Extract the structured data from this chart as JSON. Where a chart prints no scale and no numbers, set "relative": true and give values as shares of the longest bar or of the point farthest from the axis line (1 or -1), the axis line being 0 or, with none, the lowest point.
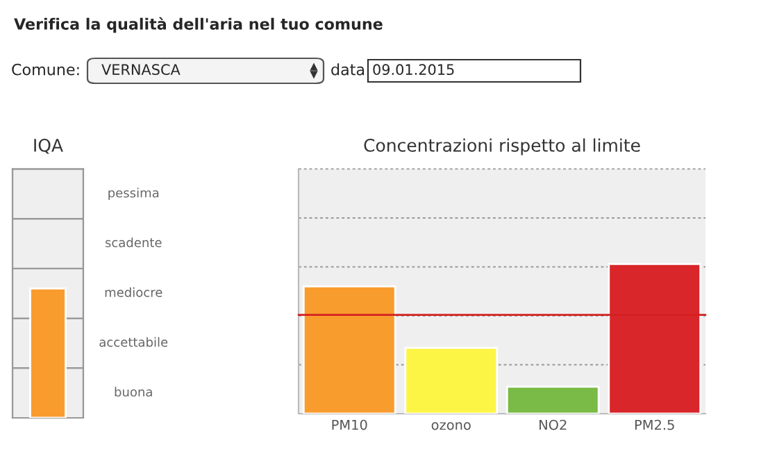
{
  "chart_data": [
    {
      "type": "other",
      "title": "Verifica la qualità dell'aria nel tuo comune",
      "annotations": [
        "Comune:",
        "VERNASCA",
        "data",
        "09.01.2015"
      ]
    },
    {
      "type": "bar",
      "title": "IQA",
      "categories": [
        null
      ],
      "values": [
        1
      ],
      "colors": [
        "#f99c2e"
      ],
      "relative": true,
      "bands": [
        {
          "axis": "y",
          "from": 0,
          "to": 0.385,
          "label": "buona",
          "color": "#efefef"
        },
        {
          "axis": "y",
          "from": 0.385,
          "to": 0.769,
          "label": "accettabile",
          "color": "#efefef"
        },
        {
          "axis": "y",
          "from": 0.769,
          "to": 1.154,
          "label": "mediocre",
          "color": "#efefef"
        },
        {
          "axis": "y",
          "from": 1.154,
          "to": 1.538,
          "label": "scadente",
          "color": "#efefef"
        },
        {
          "axis": "y",
          "from": 1.538,
          "to": 1.923,
          "label": "pessima",
          "color": "#efefef"
        }
      ]
    },
    {
      "type": "bar",
      "title": "Concentrazioni rispetto al limite",
      "categories": [
        "PM10",
        "ozono",
        "NO2",
        "PM2.5"
      ],
      "values": [
        0.85,
        0.44,
        0.18,
        1
      ],
      "colors": [
        "#f99c2e",
        "#fdf545",
        "#79bb46",
        "#d9262a"
      ],
      "relative": true,
      "ref_lines": [
        {
          "axis": "y",
          "value": 0.327,
          "color": "#999999",
          "line_style": "dotted"
        },
        {
          "axis": "y",
          "value": 0.654,
          "color": "#999999",
          "line_style": "dotted"
        },
        {
          "axis": "y",
          "value": 0.981,
          "color": "#999999",
          "line_style": "dotted"
        },
        {
          "axis": "y",
          "value": 1.308,
          "color": "#999999",
          "line_style": "dotted"
        },
        {
          "axis": "y",
          "value": 1.635,
          "color": "#999999",
          "line_style": "dotted"
        },
        {
          "axis": "y",
          "value": 0.66,
          "color": "#d42020"
        }
      ]
    }
  ]
}
